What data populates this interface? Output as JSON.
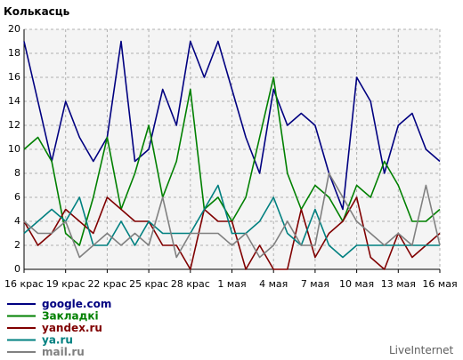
{
  "chart_data": {
    "type": "line",
    "ylabel": "Колькасць",
    "ylim": [
      0,
      20
    ],
    "yticks": [
      0,
      2,
      4,
      6,
      8,
      10,
      12,
      14,
      16,
      18,
      20
    ],
    "grid": true,
    "legend_placement": "bottom-left",
    "x_tick_labels": [
      "16 крас",
      "19 крас",
      "22 крас",
      "25 крас",
      "28 крас",
      "1 мая",
      "4 мая",
      "7 мая",
      "10 мая",
      "13 мая",
      "16 мая"
    ],
    "x_tick_indices": [
      0,
      3,
      6,
      9,
      12,
      15,
      18,
      21,
      24,
      27,
      30
    ],
    "watermark": "LiveInternet",
    "series": [
      {
        "name": "google.com",
        "color": "#000080",
        "values": [
          19,
          14,
          9,
          14,
          11,
          9,
          11,
          19,
          9,
          10,
          15,
          12,
          19,
          16,
          19,
          15,
          11,
          8,
          15,
          12,
          13,
          12,
          8,
          5,
          16,
          14,
          8,
          12,
          13,
          10,
          9
        ]
      },
      {
        "name": "Закладкі",
        "color": "#008000",
        "values": [
          10,
          11,
          9,
          3,
          2,
          6,
          11,
          5,
          8,
          12,
          6,
          9,
          15,
          5,
          6,
          4,
          6,
          11,
          16,
          8,
          5,
          7,
          6,
          4,
          7,
          6,
          9,
          7,
          4,
          4,
          5
        ]
      },
      {
        "name": "yandex.ru",
        "color": "#800000",
        "values": [
          4,
          2,
          3,
          5,
          4,
          3,
          6,
          5,
          4,
          4,
          2,
          2,
          0,
          5,
          4,
          4,
          0,
          2,
          0,
          0,
          5,
          1,
          3,
          4,
          6,
          1,
          0,
          3,
          1,
          2,
          3
        ]
      },
      {
        "name": "ya.ru",
        "color": "#008080",
        "values": [
          3,
          4,
          5,
          4,
          6,
          2,
          2,
          4,
          2,
          4,
          3,
          3,
          3,
          5,
          7,
          3,
          3,
          4,
          6,
          3,
          2,
          5,
          2,
          1,
          2,
          2,
          2,
          2,
          2,
          2,
          2
        ]
      },
      {
        "name": "mail.ru",
        "color": "#808080",
        "values": [
          4,
          3,
          3,
          4,
          1,
          2,
          3,
          2,
          3,
          2,
          6,
          1,
          3,
          3,
          3,
          2,
          3,
          1,
          2,
          4,
          2,
          2,
          8,
          6,
          4,
          3,
          2,
          3,
          2,
          7,
          2
        ]
      }
    ]
  }
}
